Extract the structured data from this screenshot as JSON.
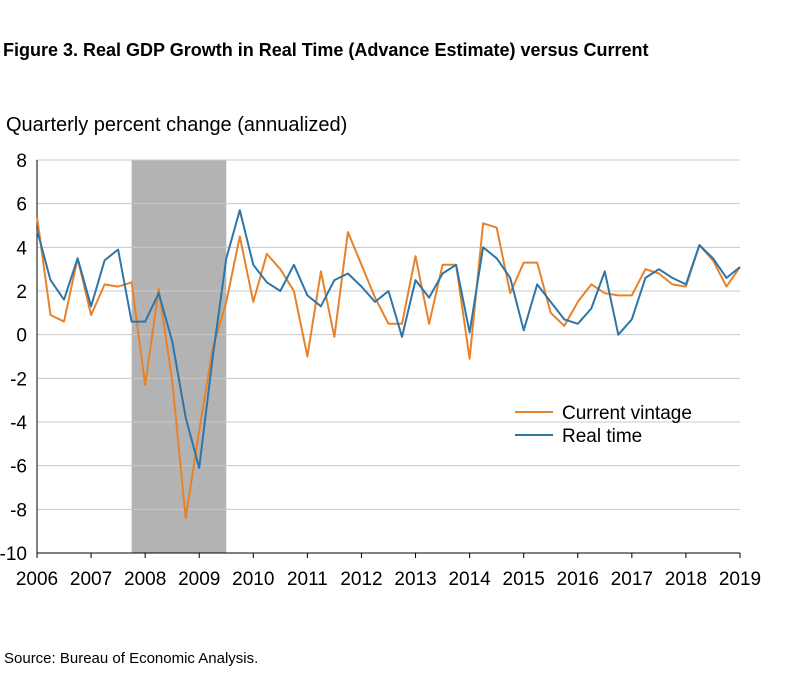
{
  "chart_data": {
    "type": "line",
    "title": "Figure 3. Real GDP Growth in Real Time (Advance Estimate) versus Current",
    "ylabel": "Quarterly percent change (annualized)",
    "xlim": [
      2006.0,
      2019.0
    ],
    "ylim": [
      -10,
      8
    ],
    "yticks": [
      8,
      6,
      4,
      2,
      0,
      -2,
      -4,
      -6,
      -8,
      -10
    ],
    "yticklabels": [
      "8",
      "6",
      "4",
      "2",
      "0",
      "-2",
      "-4",
      "-6",
      "-8",
      "-10"
    ],
    "xticks": [
      2006,
      2007,
      2008,
      2009,
      2010,
      2011,
      2012,
      2013,
      2014,
      2015,
      2016,
      2017,
      2018,
      2019
    ],
    "xticklabels": [
      "2006",
      "2007",
      "2008",
      "2009",
      "2010",
      "2011",
      "2012",
      "2013",
      "2014",
      "2015",
      "2016",
      "2017",
      "2018",
      "2019"
    ],
    "grid": "horizontal",
    "legend": "center-right",
    "shaded_period": {
      "start": 2007.75,
      "end": 2009.5,
      "color": "#b3b3b3"
    },
    "x": [
      2006.0,
      2006.25,
      2006.5,
      2006.75,
      2007.0,
      2007.25,
      2007.5,
      2007.75,
      2008.0,
      2008.25,
      2008.5,
      2008.75,
      2009.0,
      2009.25,
      2009.5,
      2009.75,
      2010.0,
      2010.25,
      2010.5,
      2010.75,
      2011.0,
      2011.25,
      2011.5,
      2011.75,
      2012.0,
      2012.25,
      2012.5,
      2012.75,
      2013.0,
      2013.25,
      2013.5,
      2013.75,
      2014.0,
      2014.25,
      2014.5,
      2014.75,
      2015.0,
      2015.25,
      2015.5,
      2015.75,
      2016.0,
      2016.25,
      2016.5,
      2016.75,
      2017.0,
      2017.25,
      2017.5,
      2017.75,
      2018.0,
      2018.25,
      2018.5,
      2018.75,
      2019.0
    ],
    "series": [
      {
        "name": "Current vintage",
        "color": "#e8822a",
        "values": [
          5.4,
          0.9,
          0.6,
          3.5,
          0.9,
          2.3,
          2.2,
          2.4,
          -2.3,
          2.1,
          -2.1,
          -8.4,
          -4.4,
          -0.6,
          1.5,
          4.5,
          1.5,
          3.7,
          3.0,
          2.0,
          -1.0,
          2.9,
          -0.1,
          4.7,
          3.2,
          1.7,
          0.5,
          0.5,
          3.6,
          0.5,
          3.2,
          3.2,
          -1.1,
          5.1,
          4.9,
          1.9,
          3.3,
          3.3,
          1.0,
          0.4,
          1.5,
          2.3,
          1.9,
          1.8,
          1.8,
          3.0,
          2.8,
          2.3,
          2.2,
          4.1,
          3.4,
          2.2,
          3.1
        ]
      },
      {
        "name": "Real time",
        "color": "#2e75a8",
        "values": [
          4.8,
          2.5,
          1.6,
          3.5,
          1.3,
          3.4,
          3.9,
          0.6,
          0.6,
          1.9,
          -0.3,
          -3.8,
          -6.1,
          -1.0,
          3.5,
          5.7,
          3.2,
          2.4,
          2.0,
          3.2,
          1.8,
          1.3,
          2.5,
          2.8,
          2.2,
          1.5,
          2.0,
          -0.1,
          2.5,
          1.7,
          2.8,
          3.2,
          0.1,
          4.0,
          3.5,
          2.6,
          0.2,
          2.3,
          1.5,
          0.7,
          0.5,
          1.2,
          2.9,
          0.0,
          0.7,
          2.6,
          3.0,
          2.6,
          2.3,
          4.1,
          3.5,
          2.6,
          3.1
        ]
      }
    ]
  },
  "source": "Source: Bureau of Economic Analysis."
}
